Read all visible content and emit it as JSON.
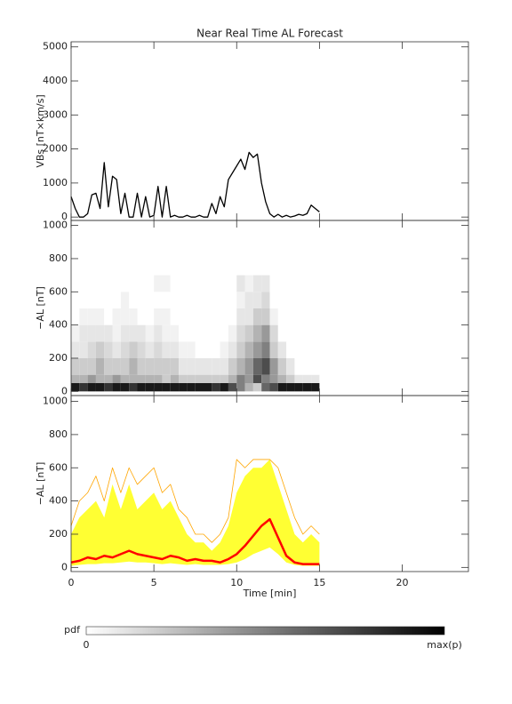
{
  "chart_data": [
    {
      "type": "line",
      "title": "Near Real Time AL Forecast",
      "ylabel": "VBs [nT×km/s]",
      "xlim": [
        0,
        24
      ],
      "xticks": [
        0,
        5,
        10,
        15,
        20
      ],
      "ylim": [
        -100,
        5150
      ],
      "yticks": [
        0,
        1000,
        2000,
        3000,
        4000,
        5000
      ],
      "x": [
        0,
        0.25,
        0.5,
        0.75,
        1,
        1.25,
        1.5,
        1.75,
        2,
        2.25,
        2.5,
        2.75,
        3,
        3.25,
        3.5,
        3.75,
        4,
        4.25,
        4.5,
        4.75,
        5,
        5.25,
        5.5,
        5.75,
        6,
        6.25,
        6.5,
        6.75,
        7,
        7.25,
        7.5,
        7.75,
        8,
        8.25,
        8.5,
        8.75,
        9,
        9.25,
        9.5,
        9.75,
        10,
        10.25,
        10.5,
        10.75,
        11,
        11.25,
        11.5,
        11.75,
        12,
        12.25,
        12.5,
        12.75,
        13,
        13.25,
        13.5,
        13.75,
        14,
        14.25,
        14.5,
        14.75,
        15
      ],
      "series": [
        {
          "color": "#000000",
          "line_width": 1.3,
          "values": [
            600,
            250,
            0,
            0,
            100,
            650,
            700,
            250,
            1600,
            300,
            1200,
            1100,
            100,
            700,
            0,
            0,
            700,
            0,
            600,
            0,
            50,
            900,
            0,
            900,
            0,
            50,
            0,
            0,
            50,
            0,
            0,
            50,
            0,
            0,
            400,
            100,
            600,
            300,
            1100,
            1300,
            1500,
            1700,
            1400,
            1900,
            1750,
            1850,
            1000,
            450,
            100,
            0,
            80,
            0,
            50,
            0,
            30,
            80,
            50,
            100,
            350,
            250,
            150
          ]
        }
      ]
    },
    {
      "type": "heatmap",
      "ylabel": "−AL [nT]",
      "xlim": [
        0,
        24
      ],
      "xticks": [
        0,
        5,
        10,
        15,
        20
      ],
      "ylim": [
        -25,
        1030
      ],
      "yticks": [
        0,
        200,
        400,
        600,
        800,
        1000
      ],
      "x_edges": [
        0,
        0.5,
        1,
        1.5,
        2,
        2.5,
        3,
        3.5,
        4,
        4.5,
        5,
        5.5,
        6,
        6.5,
        7,
        7.5,
        8,
        8.5,
        9,
        9.5,
        10,
        10.5,
        11,
        11.5,
        12,
        12.5,
        13,
        13.5,
        14,
        14.5,
        15
      ],
      "y_edges": [
        0,
        50,
        100,
        200,
        300,
        400,
        500,
        600,
        700
      ],
      "z": [
        [
          0.9,
          0.8,
          0.9,
          0.9,
          0.8,
          0.9,
          0.9,
          0.8,
          0.9,
          0.9,
          0.9,
          0.9,
          0.9,
          0.9,
          0.9,
          0.9,
          0.9,
          0.8,
          0.9,
          0.7,
          0.5,
          0.3,
          0.2,
          0.6,
          0.7,
          0.9,
          0.9,
          0.9,
          0.9,
          0.9
        ],
        [
          0.3,
          0.3,
          0.4,
          0.3,
          0.3,
          0.4,
          0.3,
          0.3,
          0.3,
          0.3,
          0.3,
          0.2,
          0.3,
          0.2,
          0.2,
          0.2,
          0.2,
          0.2,
          0.2,
          0.3,
          0.5,
          0.4,
          0.7,
          0.5,
          0.4,
          0.3,
          0.2,
          0.1,
          0.1,
          0.1
        ],
        [
          0.2,
          0.2,
          0.2,
          0.3,
          0.2,
          0.2,
          0.2,
          0.3,
          0.2,
          0.2,
          0.2,
          0.2,
          0.2,
          0.1,
          0.1,
          0.1,
          0.1,
          0.1,
          0.1,
          0.2,
          0.3,
          0.4,
          0.6,
          0.7,
          0.4,
          0.2,
          0.1,
          0,
          0,
          0
        ],
        [
          0.1,
          0.1,
          0.15,
          0.2,
          0.15,
          0.1,
          0.15,
          0.2,
          0.15,
          0.1,
          0.15,
          0.1,
          0.1,
          0.05,
          0.05,
          0,
          0,
          0,
          0.05,
          0.1,
          0.2,
          0.3,
          0.4,
          0.5,
          0.2,
          0.1,
          0,
          0,
          0,
          0
        ],
        [
          0.05,
          0.1,
          0.1,
          0.1,
          0.1,
          0.05,
          0.1,
          0.1,
          0.1,
          0.05,
          0.1,
          0.05,
          0.05,
          0,
          0,
          0,
          0,
          0,
          0,
          0.05,
          0.15,
          0.2,
          0.3,
          0.4,
          0.15,
          0,
          0,
          0,
          0,
          0
        ],
        [
          0,
          0.05,
          0.05,
          0.05,
          0,
          0.05,
          0.05,
          0.05,
          0,
          0,
          0.05,
          0.05,
          0,
          0,
          0,
          0,
          0,
          0,
          0,
          0,
          0.1,
          0.1,
          0.2,
          0.2,
          0.05,
          0,
          0,
          0,
          0,
          0
        ],
        [
          0,
          0,
          0,
          0,
          0,
          0,
          0.05,
          0,
          0,
          0,
          0,
          0,
          0,
          0,
          0,
          0,
          0,
          0,
          0,
          0,
          0.05,
          0.1,
          0.1,
          0.15,
          0,
          0,
          0,
          0,
          0,
          0
        ],
        [
          0,
          0,
          0,
          0,
          0,
          0,
          0,
          0,
          0,
          0,
          0.05,
          0.05,
          0,
          0,
          0,
          0,
          0,
          0,
          0,
          0,
          0.1,
          0.05,
          0.1,
          0.1,
          0,
          0,
          0,
          0,
          0,
          0
        ]
      ]
    },
    {
      "type": "line",
      "ylabel": "−AL [nT]",
      "xlabel": "Time [min]",
      "xlim": [
        0,
        24
      ],
      "xticks": [
        0,
        5,
        10,
        15,
        20
      ],
      "ylim": [
        -25,
        1035
      ],
      "yticks": [
        0,
        200,
        400,
        600,
        800,
        1000
      ],
      "x": [
        0,
        0.5,
        1,
        1.5,
        2,
        2.5,
        3,
        3.5,
        4,
        4.5,
        5,
        5.5,
        6,
        6.5,
        7,
        7.5,
        8,
        8.5,
        9,
        9.5,
        10,
        10.5,
        11,
        11.5,
        12,
        12.5,
        13,
        13.5,
        14,
        14.5,
        15
      ],
      "band": {
        "color": "#ffff33",
        "lower": [
          10,
          15,
          20,
          20,
          25,
          25,
          30,
          35,
          30,
          30,
          25,
          20,
          25,
          20,
          15,
          20,
          15,
          15,
          15,
          20,
          30,
          50,
          80,
          100,
          120,
          80,
          30,
          15,
          10,
          10,
          10
        ],
        "upper": [
          200,
          300,
          350,
          400,
          300,
          500,
          350,
          500,
          350,
          400,
          450,
          350,
          400,
          300,
          200,
          150,
          150,
          100,
          150,
          250,
          450,
          550,
          600,
          600,
          650,
          500,
          350,
          200,
          150,
          200,
          150
        ]
      },
      "series": [
        {
          "color": "#ffa500",
          "line_width": 0.8,
          "values": [
            250,
            400,
            450,
            550,
            400,
            600,
            450,
            600,
            500,
            550,
            600,
            450,
            500,
            350,
            300,
            200,
            200,
            150,
            200,
            300,
            650,
            600,
            650,
            650,
            650,
            600,
            450,
            300,
            200,
            250,
            200
          ]
        },
        {
          "color": "#ff0000",
          "line_width": 2.5,
          "values": [
            30,
            40,
            60,
            50,
            70,
            60,
            80,
            100,
            80,
            70,
            60,
            50,
            70,
            60,
            40,
            50,
            40,
            40,
            30,
            50,
            80,
            130,
            190,
            250,
            290,
            180,
            70,
            30,
            20,
            20,
            20
          ]
        }
      ]
    }
  ],
  "colorbar": {
    "label": "pdf",
    "min_label": "0",
    "max_label": "max(p)"
  }
}
